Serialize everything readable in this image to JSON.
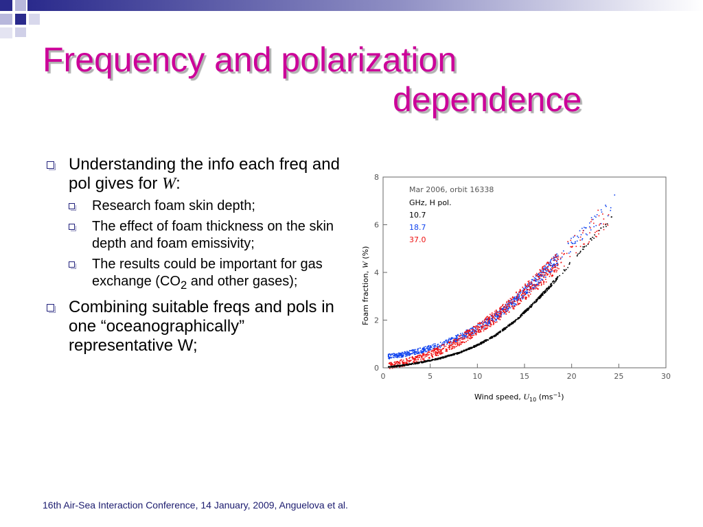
{
  "slide": {
    "title_line1": "Frequency and polarization",
    "title_line2": "dependence",
    "bullets": [
      {
        "text_before": "Understanding the info each freq and pol gives for ",
        "text_italic": "W",
        "text_after": ":",
        "subs": [
          {
            "text": "Research foam skin depth;"
          },
          {
            "text": "The effect of foam thickness on the skin depth and foam emissivity;"
          },
          {
            "text_before": "The results could be important for gas exchange (CO",
            "sub": "2",
            "text_after": " and other gases);"
          }
        ]
      },
      {
        "text": "Combining suitable freqs and pols in one “oceanographically” representative W;"
      }
    ],
    "footer": "16th Air-Sea Interaction Conference, 14 January, 2009, Anguelova et al."
  },
  "colors": {
    "title": "#cc0099",
    "bullet": "#1f1f7a",
    "series_10_7": "#000000",
    "series_18_7": "#1144ee",
    "series_37_0": "#ee1111"
  },
  "chart_data": {
    "type": "scatter",
    "annotation_line1": "Mar 2006, orbit 16338",
    "annotation_line2": "GHz, H pol.",
    "xlabel_main": "Wind speed, ",
    "xlabel_sym": "U",
    "xlabel_sub": "10",
    "xlabel_unit": " (ms",
    "xlabel_exp": "−1",
    "xlabel_close": ")",
    "ylabel_main": "Foam fraction, ",
    "ylabel_sym": "W",
    "ylabel_unit": " (%)",
    "xlim": [
      0,
      30
    ],
    "ylim": [
      0,
      8
    ],
    "xticks": [
      "0",
      "5",
      "10",
      "15",
      "20",
      "25",
      "30"
    ],
    "yticks": [
      "0",
      "2",
      "4",
      "6",
      "8"
    ],
    "xtick_values": [
      0,
      5,
      10,
      15,
      20,
      25,
      30
    ],
    "ytick_values": [
      0,
      2,
      4,
      6,
      8
    ],
    "series": [
      {
        "name": "10.7",
        "color": "#000000",
        "x": [
          0.5,
          2,
          4,
          6,
          8,
          10,
          12,
          14,
          16,
          18,
          20,
          22,
          24.5
        ],
        "y": [
          0.05,
          0.12,
          0.25,
          0.42,
          0.65,
          0.98,
          1.42,
          2.0,
          2.75,
          3.6,
          4.5,
          5.4,
          6.4
        ]
      },
      {
        "name": "18.7",
        "color": "#1144ee",
        "x": [
          0.5,
          2,
          4,
          6,
          8,
          10,
          12,
          14,
          16,
          18,
          20,
          22,
          24.5
        ],
        "y": [
          0.5,
          0.58,
          0.75,
          0.98,
          1.3,
          1.7,
          2.2,
          2.85,
          3.6,
          4.4,
          5.2,
          6.0,
          6.9
        ]
      },
      {
        "name": "37.0",
        "color": "#ee1111",
        "x": [
          0.5,
          2,
          4,
          6,
          8,
          10,
          12,
          14,
          16,
          18,
          20,
          22,
          24.5
        ],
        "y": [
          0.1,
          0.22,
          0.45,
          0.75,
          1.15,
          1.65,
          2.2,
          2.85,
          3.55,
          4.3,
          5.05,
          5.85,
          6.7
        ]
      }
    ]
  }
}
